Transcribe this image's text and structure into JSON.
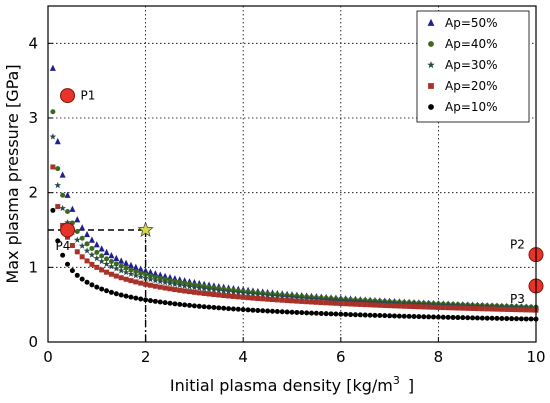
{
  "chart_data": {
    "type": "scatter",
    "xlabel": "Initial plasma density [kg/m",
    "xlabel_sup": "3",
    "xlabel_close": "]",
    "ylabel": "Max plasma pressure [GPa]",
    "xlim": [
      0,
      10
    ],
    "ylim": [
      0,
      4.5
    ],
    "xticks": [
      "0",
      "2",
      "4",
      "6",
      "8",
      "10"
    ],
    "yticks": [
      "0",
      "1",
      "2",
      "3",
      "4"
    ],
    "legend_position": "top-right",
    "series": [
      {
        "name": "Ap=50%",
        "marker": "triangle",
        "color": "#1f1f8f",
        "k": 1.3,
        "p": 0.45
      },
      {
        "name": "Ap=40%",
        "marker": "circle",
        "color": "#3a6b1c",
        "k": 1.2,
        "p": 0.41
      },
      {
        "name": "Ap=30%",
        "marker": "star",
        "color": "#2a4a4a",
        "k": 1.12,
        "p": 0.39
      },
      {
        "name": "Ap=20%",
        "marker": "square",
        "color": "#a83228",
        "k": 1.0,
        "p": 0.37
      },
      {
        "name": "Ap=10%",
        "marker": "circle",
        "color": "#000000",
        "k": 0.735,
        "p": 0.38
      }
    ],
    "x_start": 0.1,
    "x_end": 10.0,
    "x_step": 0.1,
    "points": [
      {
        "label": "P1",
        "x": 0.4,
        "y": 3.3
      },
      {
        "label": "P2",
        "x": 10.0,
        "y": 1.17
      },
      {
        "label": "P3",
        "x": 10.0,
        "y": 0.75
      },
      {
        "label": "P4",
        "x": 0.4,
        "y": 1.5
      }
    ],
    "star_point": {
      "x": 2.0,
      "y": 1.5
    },
    "reference_lines": {
      "x": 2.0,
      "y": 1.5
    },
    "grid": true
  }
}
